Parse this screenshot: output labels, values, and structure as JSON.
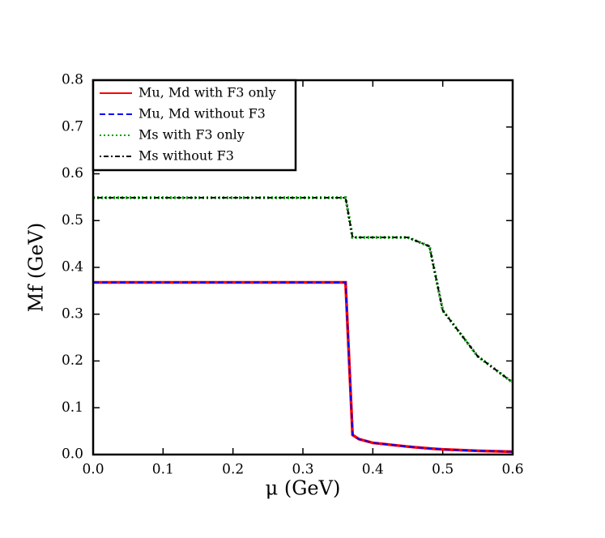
{
  "chart_data": {
    "type": "line",
    "x": [
      0,
      0.361,
      0.371,
      0.38,
      0.4,
      0.45,
      0.481,
      0.5,
      0.55,
      0.6
    ],
    "series": [
      {
        "name": "Mu, Md with F3 only",
        "color": "#ff0000",
        "style": "solid",
        "values": [
          0.368,
          0.368,
          0.042,
          0.033,
          0.025,
          0.017,
          0.013,
          0.011,
          0.008,
          0.006
        ]
      },
      {
        "name": "Mu, Md without F3",
        "color": "#0000ff",
        "style": "dashed",
        "values": [
          0.368,
          0.368,
          0.042,
          0.033,
          0.025,
          0.017,
          0.013,
          0.011,
          0.008,
          0.006
        ]
      },
      {
        "name": "Ms with F3 only",
        "color": "#009900",
        "style": "dotted",
        "values": [
          0.549,
          0.549,
          0.464,
          0.464,
          0.464,
          0.464,
          0.445,
          0.308,
          0.21,
          0.154
        ]
      },
      {
        "name": "Ms without F3",
        "color": "#000000",
        "style": "dashdot",
        "values": [
          0.549,
          0.549,
          0.464,
          0.464,
          0.464,
          0.464,
          0.445,
          0.308,
          0.21,
          0.154
        ]
      }
    ],
    "xlabel": "μ (GeV)",
    "ylabel": "Mf (GeV)",
    "xlim": [
      0,
      0.6
    ],
    "ylim": [
      0,
      0.8
    ],
    "xticks": [
      {
        "value": 0,
        "label": "0.0"
      },
      0.1,
      0.2,
      0.3,
      0.4,
      0.5,
      0.6
    ],
    "yticks": [
      {
        "value": 0,
        "label": "0.0"
      },
      0.1,
      0.2,
      0.3,
      0.4,
      0.5,
      0.6,
      0.7,
      0.8
    ],
    "legend": "upper left",
    "grid": false
  }
}
